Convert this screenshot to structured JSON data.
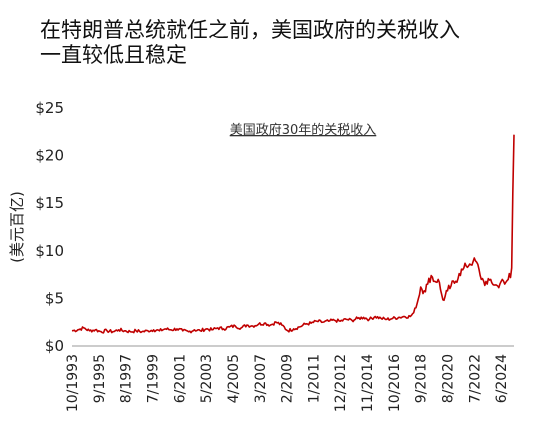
{
  "headline": {
    "line1": "在特朗普总统就任之前，美国政府的关税收入",
    "line2": "一直较低且稳定"
  },
  "chart_data": {
    "type": "line",
    "title": "美国政府30年的关税收入",
    "xlabel": "",
    "ylabel": "(美元百亿)",
    "ylim": [
      0,
      25
    ],
    "y_ticks": [
      0,
      5,
      10,
      15,
      20,
      25
    ],
    "y_tick_labels": [
      "$0",
      "$5",
      "$10",
      "$15",
      "$20",
      "$25"
    ],
    "x_range": [
      "1993-10",
      "2025-05"
    ],
    "x_ticks": [
      "10/1993",
      "9/1995",
      "8/1997",
      "7/1999",
      "6/2001",
      "5/2003",
      "4/2005",
      "3/2007",
      "2/2009",
      "1/2011",
      "12/2012",
      "11/2014",
      "10/2016",
      "9/2018",
      "8/2020",
      "7/2022",
      "6/2024"
    ],
    "grid": false,
    "legend": "none",
    "series_color": "#c00000",
    "series": [
      {
        "x": [
          "1993-10",
          "1994-03",
          "1994-08",
          "1995-01",
          "1995-06",
          "1995-11",
          "1996-04",
          "1996-09",
          "1997-02",
          "1997-07",
          "1997-12",
          "1998-05",
          "1998-10",
          "1999-03",
          "1999-08",
          "2000-01",
          "2000-06",
          "2000-11",
          "2001-04",
          "2001-09",
          "2002-02",
          "2002-07",
          "2002-12",
          "2003-05",
          "2003-10",
          "2004-03",
          "2004-08",
          "2005-01",
          "2005-06",
          "2005-11",
          "2006-04",
          "2006-09",
          "2007-02",
          "2007-07",
          "2007-12",
          "2008-05",
          "2008-10",
          "2009-03",
          "2009-08",
          "2010-01",
          "2010-06",
          "2010-11",
          "2011-04",
          "2011-09",
          "2012-02",
          "2012-07",
          "2012-12",
          "2013-05",
          "2013-10",
          "2014-03",
          "2014-08",
          "2015-01",
          "2015-06",
          "2015-11",
          "2016-04",
          "2016-09",
          "2017-02",
          "2017-07",
          "2017-12",
          "2018-03",
          "2018-06",
          "2018-09",
          "2018-12",
          "2019-03",
          "2019-06",
          "2019-09",
          "2019-12",
          "2020-03",
          "2020-05",
          "2020-08",
          "2020-11",
          "2021-03",
          "2021-06",
          "2021-09",
          "2021-12",
          "2022-03",
          "2022-06",
          "2022-09",
          "2022-12",
          "2023-03",
          "2023-06",
          "2023-09",
          "2023-12",
          "2024-03",
          "2024-06",
          "2024-09",
          "2024-12",
          "2025-01",
          "2025-02",
          "2025-03",
          "2025-04",
          "2025-05"
        ],
        "y": [
          1.6,
          1.7,
          1.9,
          1.6,
          1.7,
          1.5,
          1.6,
          1.5,
          1.7,
          1.6,
          1.5,
          1.6,
          1.5,
          1.6,
          1.7,
          1.6,
          1.8,
          1.7,
          1.8,
          1.6,
          1.5,
          1.7,
          1.6,
          1.8,
          1.7,
          1.9,
          1.8,
          2.0,
          2.1,
          1.9,
          2.2,
          2.1,
          2.3,
          2.4,
          2.2,
          2.5,
          2.2,
          1.6,
          1.8,
          2.0,
          2.3,
          2.4,
          2.6,
          2.5,
          2.6,
          2.7,
          2.6,
          2.8,
          2.7,
          2.9,
          3.0,
          2.8,
          3.1,
          2.9,
          2.8,
          2.9,
          3.0,
          3.1,
          3.1,
          3.5,
          4.5,
          6.2,
          5.8,
          6.5,
          7.4,
          6.8,
          7.0,
          5.4,
          4.8,
          5.8,
          6.3,
          6.8,
          7.6,
          8.0,
          8.4,
          8.6,
          8.9,
          8.8,
          7.4,
          6.8,
          6.5,
          7.0,
          6.4,
          6.3,
          6.8,
          6.5,
          7.0,
          7.6,
          7.2,
          8.2,
          16.0,
          22.2
        ]
      }
    ]
  }
}
